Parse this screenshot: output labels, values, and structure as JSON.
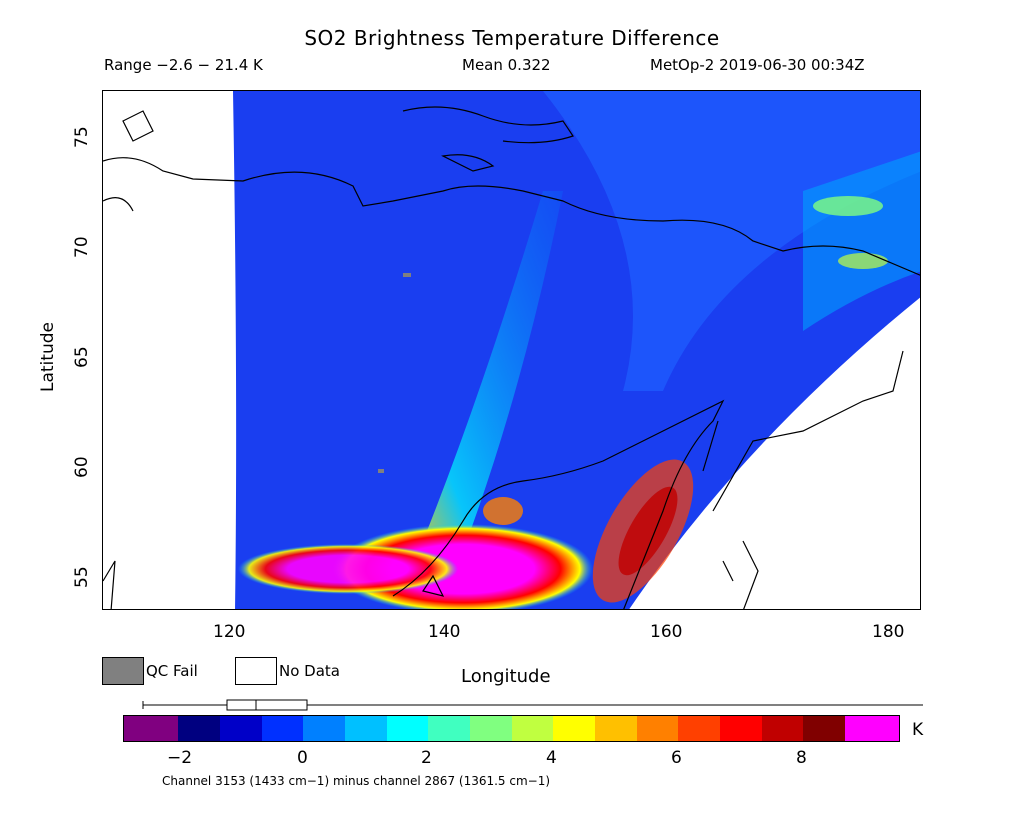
{
  "header": {
    "title": "SO2 Brightness Temperature Difference",
    "range": "Range −2.6 − 21.4 K",
    "mean": "Mean 0.322",
    "satellite": "MetOp-2 2019-06-30 00:34Z"
  },
  "axes": {
    "x_label": "Longitude",
    "y_label": "Latitude",
    "x_ticks": [
      "120",
      "140",
      "160",
      "180"
    ],
    "y_ticks": [
      "75",
      "70",
      "65",
      "60",
      "55"
    ],
    "lon_range": [
      109,
      183
    ],
    "lat_range": [
      53.2,
      77
    ]
  },
  "legend": {
    "qc_fail": "QC Fail",
    "no_data": "No Data",
    "qc_fail_color": "#808080",
    "no_data_color": "#ffffff"
  },
  "colorbar": {
    "unit": "K",
    "ticks": [
      "−2",
      "0",
      "2",
      "4",
      "6",
      "8"
    ],
    "colors": [
      "#800080",
      "#000080",
      "#0000c8",
      "#0030ff",
      "#0080ff",
      "#00c0ff",
      "#00ffff",
      "#40ffc0",
      "#80ff80",
      "#c0ff40",
      "#ffff00",
      "#ffc000",
      "#ff8000",
      "#ff4000",
      "#ff0000",
      "#c00000",
      "#800000",
      "#ff00ff"
    ],
    "caption": "Channel 3153 (1433 cm−1) minus channel 2867 (1361.5 cm−1)"
  }
}
